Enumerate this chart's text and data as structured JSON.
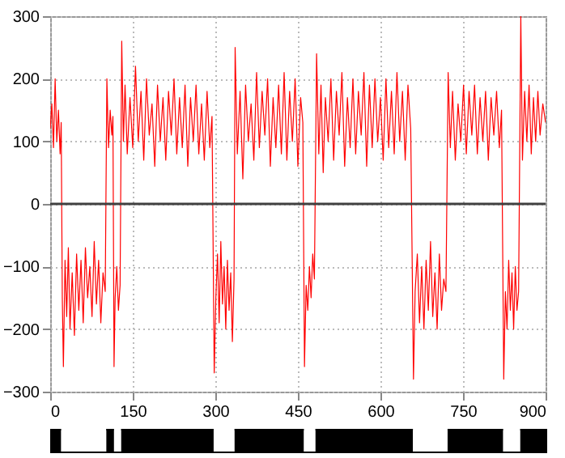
{
  "chart_data": [
    {
      "type": "line",
      "x": [
        0,
        3,
        6,
        9,
        12,
        15,
        18,
        20,
        22,
        24,
        27,
        30,
        33,
        36,
        40,
        44,
        48,
        52,
        56,
        60,
        64,
        68,
        72,
        76,
        80,
        84,
        88,
        92,
        96,
        100,
        103,
        106,
        109,
        112,
        114,
        116,
        118,
        121,
        124,
        127,
        130,
        133,
        136,
        140,
        145,
        150,
        155,
        160,
        165,
        170,
        175,
        180,
        185,
        190,
        195,
        200,
        205,
        210,
        215,
        220,
        225,
        230,
        235,
        240,
        245,
        250,
        255,
        260,
        265,
        270,
        275,
        280,
        285,
        290,
        294,
        298,
        301,
        304,
        307,
        310,
        313,
        316,
        319,
        322,
        325,
        328,
        331,
        334,
        336,
        340,
        345,
        350,
        355,
        360,
        365,
        370,
        375,
        380,
        385,
        390,
        395,
        400,
        405,
        410,
        415,
        420,
        425,
        430,
        435,
        440,
        445,
        450,
        455,
        459,
        462,
        465,
        468,
        471,
        474,
        477,
        480,
        484,
        488,
        492,
        496,
        500,
        505,
        510,
        515,
        520,
        525,
        530,
        535,
        540,
        545,
        550,
        555,
        560,
        565,
        570,
        575,
        580,
        585,
        590,
        595,
        600,
        605,
        610,
        615,
        620,
        625,
        630,
        635,
        640,
        645,
        650,
        655,
        660,
        663,
        667,
        671,
        675,
        679,
        683,
        687,
        691,
        695,
        699,
        703,
        707,
        711,
        715,
        719,
        723,
        727,
        731,
        736,
        741,
        746,
        751,
        756,
        761,
        766,
        771,
        776,
        781,
        786,
        791,
        796,
        801,
        806,
        811,
        816,
        820,
        824,
        827,
        830,
        833,
        836,
        839,
        842,
        845,
        848,
        851,
        855,
        858,
        862,
        866,
        870,
        874,
        878,
        882,
        886,
        890,
        895,
        900
      ],
      "series": [
        {
          "color": "#ff0000",
          "values": [
            120,
            160,
            90,
            200,
            100,
            150,
            80,
            130,
            -150,
            -260,
            -90,
            -180,
            -70,
            -200,
            -110,
            -210,
            -80,
            -170,
            -90,
            -190,
            -70,
            -150,
            -100,
            -180,
            -60,
            -160,
            -90,
            -190,
            -110,
            -140,
            200,
            90,
            150,
            110,
            140,
            -260,
            -150,
            -100,
            -170,
            -130,
            260,
            100,
            190,
            80,
            170,
            90,
            220,
            100,
            180,
            70,
            200,
            110,
            160,
            60,
            190,
            100,
            170,
            70,
            180,
            110,
            200,
            80,
            170,
            90,
            190,
            60,
            170,
            100,
            190,
            80,
            160,
            70,
            180,
            90,
            140,
            -270,
            -150,
            -80,
            -190,
            -60,
            -160,
            -100,
            -200,
            -90,
            -170,
            -110,
            -220,
            -120,
            250,
            80,
            180,
            40,
            190,
            100,
            160,
            70,
            210,
            90,
            180,
            110,
            200,
            60,
            170,
            90,
            190,
            80,
            210,
            70,
            180,
            100,
            200,
            60,
            170,
            130,
            -260,
            -130,
            -170,
            -100,
            -150,
            -80,
            -120,
            240,
            80,
            190,
            50,
            170,
            100,
            200,
            70,
            180,
            110,
            210,
            60,
            170,
            90,
            200,
            80,
            180,
            110,
            210,
            60,
            190,
            90,
            200,
            100,
            170,
            70,
            200,
            90,
            180,
            80,
            210,
            100,
            180,
            70,
            190,
            120,
            -280,
            -140,
            -80,
            -190,
            -100,
            -200,
            -90,
            -170,
            -60,
            -180,
            -110,
            -200,
            -80,
            -170,
            -120,
            -140,
            210,
            90,
            180,
            70,
            160,
            100,
            190,
            80,
            180,
            110,
            190,
            80,
            170,
            100,
            180,
            70,
            170,
            110,
            180,
            90,
            150,
            -280,
            -140,
            -200,
            -90,
            -170,
            -110,
            -200,
            -100,
            -170,
            -140,
            300,
            70,
            180,
            100,
            190,
            80,
            170,
            100,
            180,
            110,
            160,
            130
          ]
        }
      ],
      "xlim": [
        0,
        900
      ],
      "xticks": [
        0,
        150,
        300,
        450,
        600,
        750,
        900
      ],
      "ylim": [
        -300,
        300
      ],
      "yticks": [
        -300,
        -200,
        -100,
        0,
        100,
        200,
        300
      ],
      "grid": true,
      "ref_lines": [
        {
          "axis": "y",
          "value": 0,
          "color": "#404040"
        }
      ]
    },
    {
      "type": "bar",
      "orientation": "horizontal",
      "stacked": true,
      "categories": [
        null
      ],
      "series": [
        {
          "color": "#000000",
          "values": [
            20
          ]
        },
        {
          "color": "#ffffff",
          "values": [
            82
          ]
        },
        {
          "color": "#000000",
          "values": [
            14
          ]
        },
        {
          "color": "#ffffff",
          "values": [
            13
          ]
        },
        {
          "color": "#000000",
          "values": [
            168
          ]
        },
        {
          "color": "#ffffff",
          "values": [
            38
          ]
        },
        {
          "color": "#000000",
          "values": [
            126
          ]
        },
        {
          "color": "#ffffff",
          "values": [
            21
          ]
        },
        {
          "color": "#000000",
          "values": [
            177
          ]
        },
        {
          "color": "#ffffff",
          "values": [
            63
          ]
        },
        {
          "color": "#000000",
          "values": [
            101
          ]
        },
        {
          "color": "#ffffff",
          "values": [
            31
          ]
        },
        {
          "color": "#000000",
          "values": [
            46
          ]
        }
      ],
      "xlim": [
        0,
        900
      ]
    }
  ]
}
